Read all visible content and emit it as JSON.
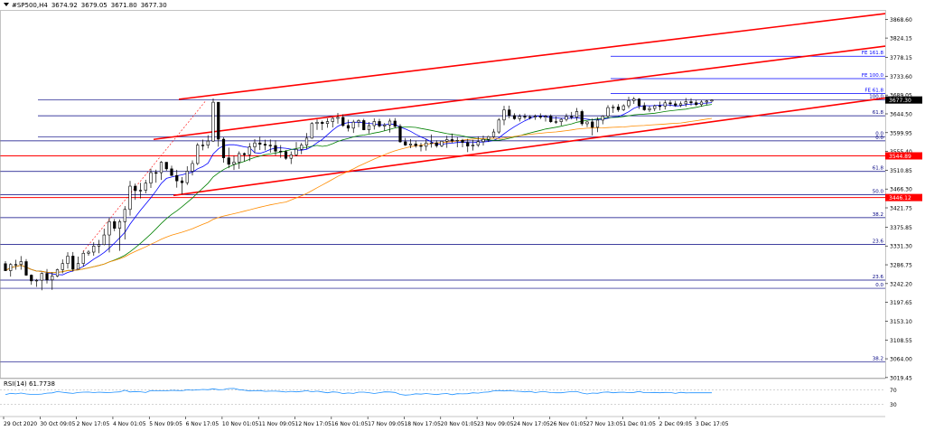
{
  "header": {
    "symbol": "#SP500,H4",
    "ohlc": [
      "3674.92",
      "3679.05",
      "3671.80",
      "3677.30"
    ]
  },
  "colors": {
    "background": "#ffffff",
    "axis": "#000000",
    "candle": "#000000",
    "ma_fast": "#0000ff",
    "ma_mid": "#008000",
    "ma_slow": "#ff8c00",
    "channel": "#ff0000",
    "fib_line": "#000080",
    "fe_line": "#0000ff",
    "rsi": "#1e90ff",
    "price_tag": "#ff0000",
    "current_price_tag": "#000000"
  },
  "chart_data": {
    "type": "candlestick",
    "symbol": "#SP500",
    "timeframe": "H4",
    "ylim": [
      3019.15,
      3890.75
    ],
    "price_axis_ticks": [
      "3868.60",
      "3824.15",
      "3778.15",
      "3733.60",
      "3689.05",
      "3644.50",
      "3599.95",
      "3555.40",
      "3510.85",
      "3466.30",
      "3421.75",
      "3375.85",
      "3331.30",
      "3286.75",
      "3242.20",
      "3197.65",
      "3153.10",
      "3108.55",
      "3064.00",
      "3019.45"
    ],
    "time_axis_ticks": [
      "29 Oct 2020",
      "30 Oct 09:05",
      "2 Nov 17:05",
      "4 Nov 01:05",
      "5 Nov 09:05",
      "6 Nov 17:05",
      "10 Nov 01:05",
      "11 Nov 09:05",
      "12 Nov 17:05",
      "16 Nov 01:05",
      "17 Nov 09:05",
      "18 Nov 17:05",
      "20 Nov 01:05",
      "23 Nov 09:05",
      "24 Nov 17:05",
      "26 Nov 01:05",
      "27 Nov 13:05",
      "1 Dec 01:05",
      "2 Dec 09:05",
      "3 Dec 17:05"
    ],
    "price_tags": [
      {
        "label": "3677.30",
        "price": 3677.3,
        "kind": "current"
      },
      {
        "label": "3544.89",
        "price": 3544.89,
        "kind": "level"
      },
      {
        "label": "3446.12",
        "price": 3446.12,
        "kind": "level"
      }
    ],
    "fib_retracement_1": [
      {
        "label": "100.0",
        "price": 3677.5
      },
      {
        "label": "61.8",
        "price": 3640.0
      },
      {
        "label": "0.0",
        "price": 3590.0
      }
    ],
    "fib_retracement_2": [
      {
        "label": "0.0",
        "price": 3580.5
      },
      {
        "label": "61.8",
        "price": 3508.0
      },
      {
        "label": "50.0",
        "price": 3453.0
      },
      {
        "label": "38.2",
        "price": 3398.5
      },
      {
        "label": "23.6",
        "price": 3335.0
      },
      {
        "label": "23.6",
        "price": 3250.5
      },
      {
        "label": "0.0",
        "price": 3231.0
      },
      {
        "label": "38.2",
        "price": 3056.5
      }
    ],
    "fib_expansion": [
      {
        "label": "FE 161.8",
        "price": 3781.0
      },
      {
        "label": "FE 100.0",
        "price": 3728.0
      },
      {
        "label": "FE 61.8",
        "price": 3693.0
      }
    ],
    "candles": [
      [
        3289.4,
        3295.5,
        3271.9,
        3272.8
      ],
      [
        3272.8,
        3290.6,
        3258.7,
        3287.4
      ],
      [
        3287.4,
        3298.6,
        3275.1,
        3287.5
      ],
      [
        3287.5,
        3307.4,
        3275.1,
        3294.3
      ],
      [
        3294.3,
        3300.3,
        3260.3,
        3262.2
      ],
      [
        3262.2,
        3264.0,
        3239.4,
        3248.6
      ],
      [
        3248.6,
        3253.2,
        3234.4,
        3250.1
      ],
      [
        3250.1,
        3269.0,
        3226.3,
        3266.3
      ],
      [
        3266.3,
        3276.7,
        3242.5,
        3251.0
      ],
      [
        3251.0,
        3269.1,
        3227.4,
        3260.1
      ],
      [
        3260.1,
        3277.4,
        3257.4,
        3275.2
      ],
      [
        3275.2,
        3299.4,
        3266.5,
        3289.7
      ],
      [
        3289.7,
        3316.5,
        3277.8,
        3307.3
      ],
      [
        3307.3,
        3317.0,
        3270.8,
        3276.4
      ],
      [
        3276.4,
        3306.2,
        3275.4,
        3289.9
      ],
      [
        3289.9,
        3320.2,
        3282.1,
        3314.1
      ],
      [
        3314.1,
        3321.4,
        3308.3,
        3316.8
      ],
      [
        3316.8,
        3340.1,
        3308.3,
        3331.1
      ],
      [
        3331.1,
        3345.7,
        3314.2,
        3334.7
      ],
      [
        3334.7,
        3372.4,
        3332.8,
        3357.4
      ],
      [
        3357.4,
        3398.4,
        3316.1,
        3389.0
      ],
      [
        3389.0,
        3395.3,
        3366.5,
        3373.2
      ],
      [
        3373.2,
        3394.2,
        3319.9,
        3388.9
      ],
      [
        3388.9,
        3425.9,
        3346.8,
        3418.0
      ],
      [
        3418.0,
        3485.6,
        3403.4,
        3473.1
      ],
      [
        3473.1,
        3479.2,
        3440.6,
        3462.5
      ],
      [
        3462.5,
        3480.8,
        3443.9,
        3463.3
      ],
      [
        3463.3,
        3488.1,
        3455.9,
        3480.3
      ],
      [
        3480.3,
        3514.6,
        3468.8,
        3505.2
      ],
      [
        3505.2,
        3512.1,
        3481.3,
        3505.1
      ],
      [
        3505.1,
        3532.6,
        3487.8,
        3529.8
      ],
      [
        3529.8,
        3530.1,
        3509.6,
        3514.1
      ],
      [
        3514.1,
        3521.5,
        3497.3,
        3498.4
      ],
      [
        3498.4,
        3511.8,
        3469.6,
        3485.6
      ],
      [
        3485.6,
        3494.8,
        3453.6,
        3481.3
      ],
      [
        3481.3,
        3520.3,
        3475.8,
        3508.5
      ],
      [
        3508.5,
        3534.2,
        3498.7,
        3526.8
      ],
      [
        3526.8,
        3575.4,
        3523.1,
        3570.4
      ],
      [
        3570.4,
        3583.4,
        3558.1,
        3570.1
      ],
      [
        3570.1,
        3594.0,
        3562.6,
        3580.0
      ],
      [
        3580.0,
        3680.9,
        3577.7,
        3672.0
      ],
      [
        3672.0,
        3672.0,
        3566.7,
        3584.5
      ],
      [
        3584.5,
        3588.8,
        3528.8,
        3540.3
      ],
      [
        3540.3,
        3564.4,
        3515.7,
        3525.0
      ],
      [
        3525.0,
        3545.8,
        3511.3,
        3530.0
      ],
      [
        3530.0,
        3555.6,
        3514.1,
        3550.3
      ],
      [
        3550.3,
        3552.8,
        3531.4,
        3547.7
      ],
      [
        3547.7,
        3575.2,
        3532.5,
        3566.1
      ],
      [
        3566.1,
        3584.9,
        3551.2,
        3575.5
      ],
      [
        3575.5,
        3590.4,
        3558.7,
        3572.5
      ],
      [
        3572.5,
        3583.1,
        3558.0,
        3570.2
      ],
      [
        3570.2,
        3583.7,
        3552.5,
        3569.3
      ],
      [
        3569.3,
        3581.9,
        3546.0,
        3556.1
      ],
      [
        3556.1,
        3570.4,
        3540.2,
        3555.0
      ],
      [
        3555.0,
        3558.6,
        3535.5,
        3539.1
      ],
      [
        3539.1,
        3555.2,
        3525.5,
        3547.4
      ],
      [
        3547.4,
        3577.5,
        3543.5,
        3560.4
      ],
      [
        3560.4,
        3575.7,
        3548.9,
        3570.4
      ],
      [
        3570.4,
        3599.0,
        3561.1,
        3586.9
      ],
      [
        3586.9,
        3624.9,
        3585.6,
        3621.5
      ],
      [
        3621.5,
        3631.4,
        3606.5,
        3624.5
      ],
      [
        3624.5,
        3628.4,
        3606.0,
        3621.6
      ],
      [
        3621.6,
        3633.9,
        3611.6,
        3626.1
      ],
      [
        3626.1,
        3636.4,
        3612.4,
        3633.8
      ],
      [
        3633.8,
        3646.6,
        3621.2,
        3636.2
      ],
      [
        3636.2,
        3643.5,
        3613.6,
        3616.8
      ],
      [
        3616.8,
        3630.5,
        3602.6,
        3610.6
      ],
      [
        3610.6,
        3630.2,
        3599.2,
        3625.0
      ],
      [
        3625.0,
        3631.6,
        3613.0,
        3628.5
      ],
      [
        3628.5,
        3632.7,
        3605.7,
        3606.7
      ],
      [
        3606.7,
        3625.1,
        3597.9,
        3616.6
      ],
      [
        3616.6,
        3633.7,
        3607.2,
        3626.4
      ],
      [
        3626.4,
        3632.6,
        3612.2,
        3615.7
      ],
      [
        3615.7,
        3622.6,
        3604.7,
        3618.2
      ],
      [
        3618.2,
        3633.2,
        3600.1,
        3627.4
      ],
      [
        3627.4,
        3634.5,
        3610.9,
        3615.0
      ],
      [
        3615.0,
        3620.2,
        3575.8,
        3578.2
      ],
      [
        3578.2,
        3587.3,
        3568.5,
        3570.5
      ],
      [
        3570.5,
        3584.9,
        3563.2,
        3573.2
      ],
      [
        3573.2,
        3581.4,
        3564.3,
        3569.0
      ],
      [
        3569.0,
        3575.8,
        3555.6,
        3567.6
      ],
      [
        3567.6,
        3585.4,
        3557.4,
        3575.5
      ],
      [
        3575.5,
        3595.5,
        3564.4,
        3575.7
      ],
      [
        3575.7,
        3581.8,
        3564.3,
        3568.8
      ],
      [
        3568.8,
        3579.8,
        3565.5,
        3579.6
      ],
      [
        3579.6,
        3592.4,
        3563.9,
        3583.5
      ],
      [
        3583.5,
        3597.6,
        3575.1,
        3580.3
      ],
      [
        3580.3,
        3589.3,
        3565.3,
        3581.7
      ],
      [
        3581.7,
        3585.4,
        3565.3,
        3576.7
      ],
      [
        3576.7,
        3585.2,
        3553.8,
        3568.1
      ],
      [
        3568.1,
        3582.8,
        3557.6,
        3570.6
      ],
      [
        3570.6,
        3590.9,
        3566.0,
        3578.7
      ],
      [
        3578.7,
        3593.0,
        3569.2,
        3584.1
      ],
      [
        3584.1,
        3592.4,
        3577.8,
        3590.6
      ],
      [
        3590.6,
        3608.7,
        3587.2,
        3601.5
      ],
      [
        3601.5,
        3634.6,
        3597.1,
        3629.9
      ],
      [
        3629.9,
        3663.4,
        3617.7,
        3653.9
      ],
      [
        3653.9,
        3663.9,
        3633.9,
        3640.3
      ],
      [
        3640.3,
        3645.9,
        3630.4,
        3633.0
      ],
      [
        3633.0,
        3643.8,
        3626.5,
        3638.3
      ],
      [
        3638.3,
        3645.1,
        3630.9,
        3637.0
      ],
      [
        3637.0,
        3641.6,
        3631.2,
        3636.6
      ],
      [
        3636.6,
        3642.8,
        3630.3,
        3639.0
      ],
      [
        3639.0,
        3645.7,
        3632.0,
        3636.6
      ],
      [
        3636.6,
        3641.4,
        3626.3,
        3638.8
      ],
      [
        3638.8,
        3643.2,
        3623.3,
        3625.9
      ],
      [
        3625.9,
        3638.1,
        3620.6,
        3626.0
      ],
      [
        3626.0,
        3634.9,
        3616.8,
        3631.4
      ],
      [
        3631.4,
        3644.9,
        3626.6,
        3638.1
      ],
      [
        3638.1,
        3649.0,
        3631.4,
        3636.6
      ],
      [
        3636.6,
        3658.3,
        3628.3,
        3650.0
      ],
      [
        3650.0,
        3654.1,
        3616.1,
        3621.0
      ],
      [
        3621.0,
        3627.1,
        3613.2,
        3625.4
      ],
      [
        3625.4,
        3633.4,
        3593.3,
        3612.6
      ],
      [
        3612.6,
        3636.6,
        3601.2,
        3629.6
      ],
      [
        3629.6,
        3641.2,
        3619.7,
        3639.3
      ],
      [
        3639.3,
        3665.2,
        3633.5,
        3659.3
      ],
      [
        3659.3,
        3666.3,
        3646.7,
        3660.7
      ],
      [
        3660.7,
        3667.5,
        3649.2,
        3654.2
      ],
      [
        3654.2,
        3667.0,
        3651.3,
        3663.6
      ],
      [
        3663.6,
        3685.0,
        3657.6,
        3675.9
      ],
      [
        3675.9,
        3684.4,
        3668.1,
        3679.5
      ],
      [
        3679.5,
        3681.6,
        3656.2,
        3663.8
      ],
      [
        3663.8,
        3671.4,
        3651.6,
        3654.1
      ],
      [
        3654.1,
        3663.4,
        3648.9,
        3657.1
      ],
      [
        3657.1,
        3666.3,
        3650.8,
        3663.5
      ],
      [
        3663.5,
        3673.4,
        3652.7,
        3662.7
      ],
      [
        3662.7,
        3677.0,
        3654.9,
        3670.6
      ],
      [
        3670.6,
        3676.6,
        3662.1,
        3668.2
      ],
      [
        3668.2,
        3675.2,
        3661.0,
        3664.8
      ],
      [
        3664.8,
        3674.0,
        3660.6,
        3668.3
      ],
      [
        3668.3,
        3682.0,
        3661.4,
        3673.2
      ],
      [
        3673.2,
        3681.3,
        3664.1,
        3670.9
      ],
      [
        3670.9,
        3677.4,
        3662.9,
        3666.4
      ],
      [
        3666.4,
        3676.7,
        3661.4,
        3672.5
      ],
      [
        3672.5,
        3677.3,
        3665.3,
        3674.9
      ],
      [
        3674.9,
        3679.1,
        3671.8,
        3677.3
      ]
    ],
    "indicator": {
      "name": "RSI(14)",
      "value": "61.7738",
      "ylim": [
        0,
        100
      ],
      "levels": [
        "70",
        "30"
      ],
      "values": [
        56.5,
        60.2,
        58.8,
        61.0,
        58.5,
        57.3,
        57.3,
        58.3,
        60.7,
        61.4,
        64.8,
        63.1,
        61.4,
        60.1,
        62.4,
        63.4,
        63.7,
        62.3,
        63.5,
        62.7,
        62.2,
        63.4,
        64.1,
        68.5,
        63.8,
        65.1,
        64.5,
        62.4,
        67.5,
        67.2,
        67.0,
        67.1,
        68.2,
        67.9,
        67.3,
        69.5,
        68.5,
        69.5,
        70.7,
        70.1,
        72.5,
        70.1,
        70.5,
        73.1,
        73.3,
        69.9,
        68.6,
        66.5,
        67.1,
        67.7,
        65.6,
        66.2,
        66.1,
        65.4,
        63.6,
        65.5,
        64.1,
        65.3,
        67.4,
        64.4,
        66.1,
        63.8,
        61.8,
        64.1,
        63.1,
        59.6,
        61.2,
        60.0,
        63.5,
        63.5,
        62.0,
        59.7,
        62.0,
        64.2,
        63.9,
        62.6,
        57.4,
        55.3,
        56.4,
        59.0,
        58.1,
        59.8,
        58.2,
        56.8,
        58.9,
        59.8,
        56.5,
        59.3,
        58.8,
        59.2,
        61.6,
        60.8,
        63.2,
        63.9,
        66.9,
        67.8,
        66.6,
        67.7,
        66.1,
        65.6,
        64.2,
        65.4,
        62.1,
        64.3,
        64.4,
        62.1,
        61.6,
        61.6,
        63.3,
        64.9,
        65.1,
        60.9,
        58.5,
        61.0,
        60.3,
        63.1,
        63.8,
        61.6,
        62.9,
        63.3,
        61.9,
        62.8,
        65.4,
        61.9,
        62.3,
        62.6,
        61.6,
        62.8,
        62.5,
        59.9,
        62.9,
        61.5,
        61.7,
        61.8,
        61.8,
        61.8,
        61.8
      ]
    }
  }
}
